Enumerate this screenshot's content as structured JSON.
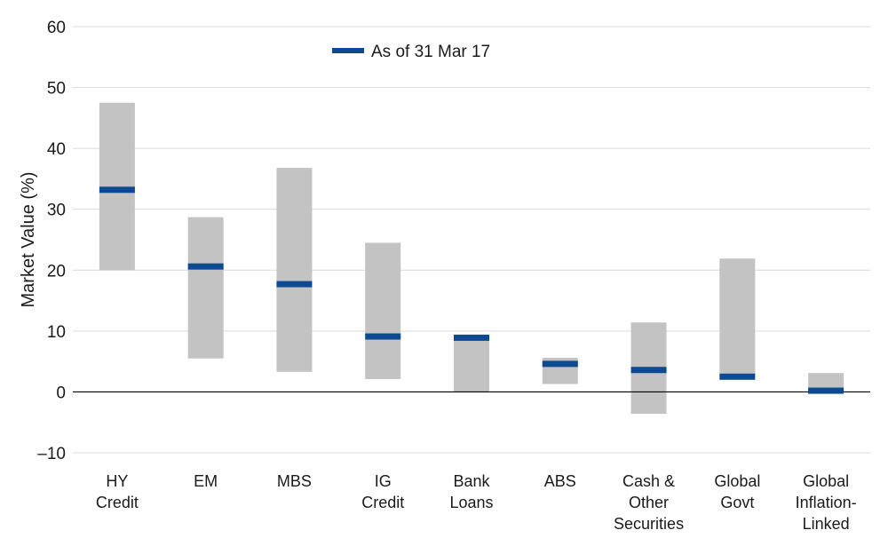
{
  "chart_data": {
    "type": "bar",
    "subtype": "floating-range-with-marker",
    "categories": [
      [
        "HY",
        "Credit"
      ],
      [
        "EM"
      ],
      [
        "MBS"
      ],
      [
        "IG",
        "Credit"
      ],
      [
        "Bank",
        "Loans"
      ],
      [
        "ABS"
      ],
      [
        "Cash &",
        "Other",
        "Securities"
      ],
      [
        "Global",
        "Govt"
      ],
      [
        "Global",
        "Inflation-",
        "Linked"
      ]
    ],
    "ranges": [
      [
        20,
        47.5
      ],
      [
        5.5,
        28.7
      ],
      [
        3.3,
        36.8
      ],
      [
        2.1,
        24.5
      ],
      [
        0,
        9.2
      ],
      [
        1.3,
        5.6
      ],
      [
        -3.6,
        11.4
      ],
      [
        2.4,
        21.9
      ],
      [
        0,
        3.1
      ]
    ],
    "series": [
      {
        "name": "As of 31 Mar 17",
        "values": [
          33.2,
          20.6,
          17.7,
          9.1,
          8.9,
          4.6,
          3.6,
          2.5,
          0.2
        ]
      }
    ],
    "title": "",
    "xlabel": "",
    "ylabel": "Market Value (%)",
    "ylim": [
      -10,
      60
    ],
    "yticks": [
      -10,
      0,
      10,
      20,
      30,
      40,
      50,
      60
    ],
    "ytick_labels": [
      "–10",
      "0",
      "10",
      "20",
      "30",
      "40",
      "50",
      "60"
    ],
    "grid": true,
    "legend_position": "top-center",
    "colors": {
      "range": "#c3c3c3",
      "marker": "#0d4a92",
      "grid": "#d9d9d9",
      "zero_line": "#000000"
    }
  }
}
